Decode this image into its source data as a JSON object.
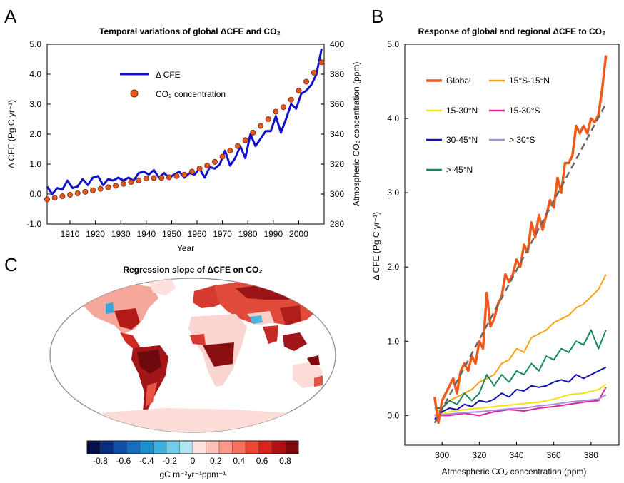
{
  "colors": {
    "cfe": "#1111cc",
    "co2_fill": "#e8561f",
    "co2_stroke": "#6b2a0a",
    "fit_line": "#666666",
    "map_land_low": "#f7d4d0",
    "map_ocean": "#ffffff"
  },
  "chart_data": [
    {
      "id": "A",
      "panel_letter": "A",
      "type": "line",
      "title": "Temporal variations of global ΔCFE and CO₂",
      "xlabel": "Year",
      "ylabel": "Δ CFE (Pg C yr⁻¹)",
      "y2label": "Atmospheric CO₂ concentration (ppm)",
      "xlim": [
        1901,
        2010
      ],
      "ylim": [
        -1.0,
        5.0
      ],
      "y2lim": [
        280,
        400
      ],
      "xticks": [
        "1910",
        "1920",
        "1930",
        "1940",
        "1950",
        "1960",
        "1970",
        "1980",
        "1990",
        "2000"
      ],
      "yticks": [
        "-1.0",
        "0.0",
        "1.0",
        "2.0",
        "3.0",
        "4.0",
        "5.0"
      ],
      "y2ticks": [
        "280",
        "300",
        "320",
        "340",
        "360",
        "380",
        "400"
      ],
      "legend": {
        "position": "top-left",
        "entries": [
          "Δ CFE",
          "CO₂ concentration"
        ]
      },
      "series": [
        {
          "name": "Δ CFE",
          "color": "#1111cc",
          "axis": "left",
          "x": [
            1901,
            1903,
            1905,
            1907,
            1909,
            1911,
            1913,
            1915,
            1917,
            1919,
            1921,
            1923,
            1925,
            1927,
            1929,
            1931,
            1933,
            1935,
            1937,
            1939,
            1941,
            1943,
            1945,
            1947,
            1949,
            1951,
            1953,
            1955,
            1957,
            1959,
            1961,
            1963,
            1965,
            1967,
            1969,
            1971,
            1973,
            1975,
            1977,
            1979,
            1981,
            1983,
            1985,
            1987,
            1989,
            1991,
            1993,
            1995,
            1997,
            1999,
            2001,
            2003,
            2005,
            2007,
            2009
          ],
          "values": [
            0.25,
            0.0,
            0.2,
            0.15,
            0.45,
            0.2,
            0.25,
            0.5,
            0.3,
            0.55,
            0.6,
            0.3,
            0.5,
            0.45,
            0.55,
            0.45,
            0.55,
            0.45,
            0.7,
            0.75,
            0.65,
            0.8,
            0.55,
            0.7,
            0.55,
            0.65,
            0.75,
            0.55,
            0.7,
            0.65,
            0.85,
            0.55,
            0.9,
            0.85,
            1.0,
            1.45,
            0.95,
            1.2,
            1.6,
            1.2,
            2.0,
            1.6,
            1.85,
            2.1,
            2.1,
            2.6,
            2.05,
            2.5,
            3.0,
            2.85,
            3.35,
            3.45,
            3.65,
            4.0,
            4.85
          ]
        },
        {
          "name": "CO₂ concentration",
          "color": "#e8561f",
          "axis": "right",
          "marker": "circle",
          "x": [
            1901,
            1904,
            1907,
            1910,
            1913,
            1916,
            1919,
            1922,
            1925,
            1928,
            1931,
            1934,
            1937,
            1940,
            1943,
            1946,
            1949,
            1952,
            1955,
            1958,
            1961,
            1964,
            1967,
            1970,
            1973,
            1976,
            1979,
            1982,
            1985,
            1988,
            1991,
            1994,
            1997,
            2000,
            2003,
            2006,
            2009
          ],
          "values": [
            296.5,
            297.5,
            298.5,
            299.5,
            300.5,
            301.5,
            302.5,
            303.5,
            304.5,
            305.5,
            306.8,
            308.0,
            309.2,
            310.5,
            310.7,
            310.8,
            311.2,
            312.0,
            313.0,
            315.0,
            317.0,
            319.0,
            321.5,
            325.0,
            329.0,
            332.0,
            336.0,
            341.0,
            345.5,
            350.0,
            355.0,
            358.0,
            363.0,
            369.0,
            375.0,
            381.0,
            388.0
          ]
        }
      ]
    },
    {
      "id": "B",
      "panel_letter": "B",
      "type": "line",
      "title": "Response of global and regional ΔCFE to CO₂",
      "xlabel": "Atmospheric CO₂ concentration (ppm)",
      "ylabel": "Δ CFE (Pg C yr⁻¹)",
      "xlim": [
        280,
        395
      ],
      "ylim": [
        -0.4,
        5.0
      ],
      "xticks": [
        "300",
        "320",
        "340",
        "360",
        "380"
      ],
      "yticks": [
        "0.0",
        "1.0",
        "2.0",
        "3.0",
        "4.0",
        "5.0"
      ],
      "legend": {
        "position": "top-left"
      },
      "fit_line": {
        "x": [
          296,
          388
        ],
        "values": [
          -0.1,
          4.2
        ],
        "color": "#666666",
        "style": "dashed"
      },
      "series": [
        {
          "name": "Global",
          "color": "#ee5a1c",
          "x": [
            296,
            298,
            300,
            302,
            304,
            306,
            308,
            310,
            312,
            314,
            316,
            318,
            320,
            322,
            324,
            326,
            328,
            330,
            332,
            334,
            336,
            338,
            340,
            342,
            344,
            346,
            348,
            350,
            352,
            354,
            356,
            358,
            360,
            362,
            364,
            366,
            368,
            370,
            372,
            374,
            376,
            378,
            380,
            382,
            384,
            386,
            388
          ],
          "values": [
            0.25,
            -0.1,
            0.2,
            0.3,
            0.4,
            0.5,
            0.3,
            0.6,
            0.7,
            0.6,
            0.8,
            0.7,
            1.0,
            0.9,
            1.65,
            1.2,
            1.3,
            1.5,
            1.6,
            1.9,
            1.8,
            1.9,
            2.1,
            2.0,
            2.3,
            2.2,
            2.6,
            2.4,
            2.7,
            2.5,
            2.7,
            2.9,
            2.8,
            3.2,
            3.0,
            3.4,
            3.4,
            3.5,
            3.9,
            3.8,
            3.9,
            3.8,
            4.0,
            3.95,
            4.05,
            4.4,
            4.85
          ]
        },
        {
          "name": "15°S-15°N",
          "color": "#f5a30f",
          "x": [
            296,
            300,
            304,
            308,
            312,
            316,
            320,
            324,
            328,
            332,
            336,
            340,
            344,
            348,
            352,
            356,
            360,
            364,
            368,
            372,
            376,
            380,
            384,
            388
          ],
          "values": [
            0.0,
            0.1,
            0.2,
            0.25,
            0.3,
            0.35,
            0.45,
            0.5,
            0.55,
            0.7,
            0.75,
            0.9,
            0.85,
            1.05,
            1.1,
            1.15,
            1.25,
            1.3,
            1.35,
            1.45,
            1.5,
            1.6,
            1.7,
            1.9
          ]
        },
        {
          "name": "15-30°N",
          "color": "#f2e40c",
          "x": [
            296,
            304,
            312,
            320,
            328,
            336,
            344,
            352,
            360,
            368,
            376,
            384,
            388
          ],
          "values": [
            0.0,
            0.05,
            0.08,
            0.1,
            0.12,
            0.14,
            0.16,
            0.18,
            0.22,
            0.28,
            0.3,
            0.35,
            0.42
          ]
        },
        {
          "name": "15-30°S",
          "color": "#e0259c",
          "x": [
            296,
            304,
            312,
            320,
            328,
            336,
            344,
            352,
            360,
            368,
            376,
            384,
            388
          ],
          "values": [
            0.0,
            0.0,
            0.03,
            0.0,
            0.05,
            0.08,
            0.06,
            0.1,
            0.12,
            0.15,
            0.18,
            0.2,
            0.38
          ]
        },
        {
          "name": "30-45°N",
          "color": "#1010b0",
          "x": [
            296,
            300,
            304,
            308,
            312,
            316,
            320,
            324,
            328,
            332,
            336,
            340,
            344,
            348,
            352,
            356,
            360,
            364,
            368,
            372,
            376,
            380,
            384,
            388
          ],
          "values": [
            -0.05,
            0.05,
            0.1,
            0.08,
            0.15,
            0.12,
            0.2,
            0.18,
            0.22,
            0.3,
            0.25,
            0.35,
            0.33,
            0.4,
            0.38,
            0.4,
            0.45,
            0.48,
            0.45,
            0.55,
            0.5,
            0.55,
            0.6,
            0.65
          ]
        },
        {
          "name": "> 30°S",
          "color": "#a98be0",
          "x": [
            296,
            304,
            312,
            320,
            328,
            336,
            344,
            352,
            360,
            368,
            376,
            384,
            388
          ],
          "values": [
            0.0,
            0.02,
            0.04,
            0.05,
            0.07,
            0.09,
            0.1,
            0.13,
            0.15,
            0.18,
            0.2,
            0.22,
            0.28
          ]
        },
        {
          "name": "> 45°N",
          "color": "#16875a",
          "x": [
            296,
            300,
            304,
            308,
            312,
            316,
            320,
            324,
            328,
            332,
            336,
            340,
            344,
            348,
            352,
            356,
            360,
            364,
            368,
            372,
            376,
            380,
            384,
            388
          ],
          "values": [
            0.1,
            0.1,
            0.2,
            0.15,
            0.3,
            0.2,
            0.3,
            0.55,
            0.4,
            0.55,
            0.45,
            0.6,
            0.55,
            0.7,
            0.6,
            0.8,
            0.75,
            0.9,
            0.85,
            1.0,
            0.95,
            1.15,
            0.9,
            1.15
          ]
        }
      ]
    },
    {
      "id": "C",
      "panel_letter": "C",
      "type": "heatmap",
      "title": "Regression slope of ΔCFE on CO₂",
      "projection": "world map (Robinson)",
      "colorbar": {
        "label": "gC m⁻²yr⁻¹ppm⁻¹",
        "ticks": [
          "-0.8",
          "-0.6",
          "-0.4",
          "-0.2",
          "0",
          "0.2",
          "0.4",
          "0.6",
          "0.8"
        ],
        "colors": [
          "#08104a",
          "#0a2f80",
          "#0f4fa3",
          "#166fbf",
          "#1e8fcf",
          "#3fb0de",
          "#73cde8",
          "#b3e6f2",
          "#fde3df",
          "#fcc0b6",
          "#fb9a8a",
          "#f7715f",
          "#ef4634",
          "#d9231c",
          "#b01114",
          "#7e0a0e"
        ]
      }
    }
  ]
}
